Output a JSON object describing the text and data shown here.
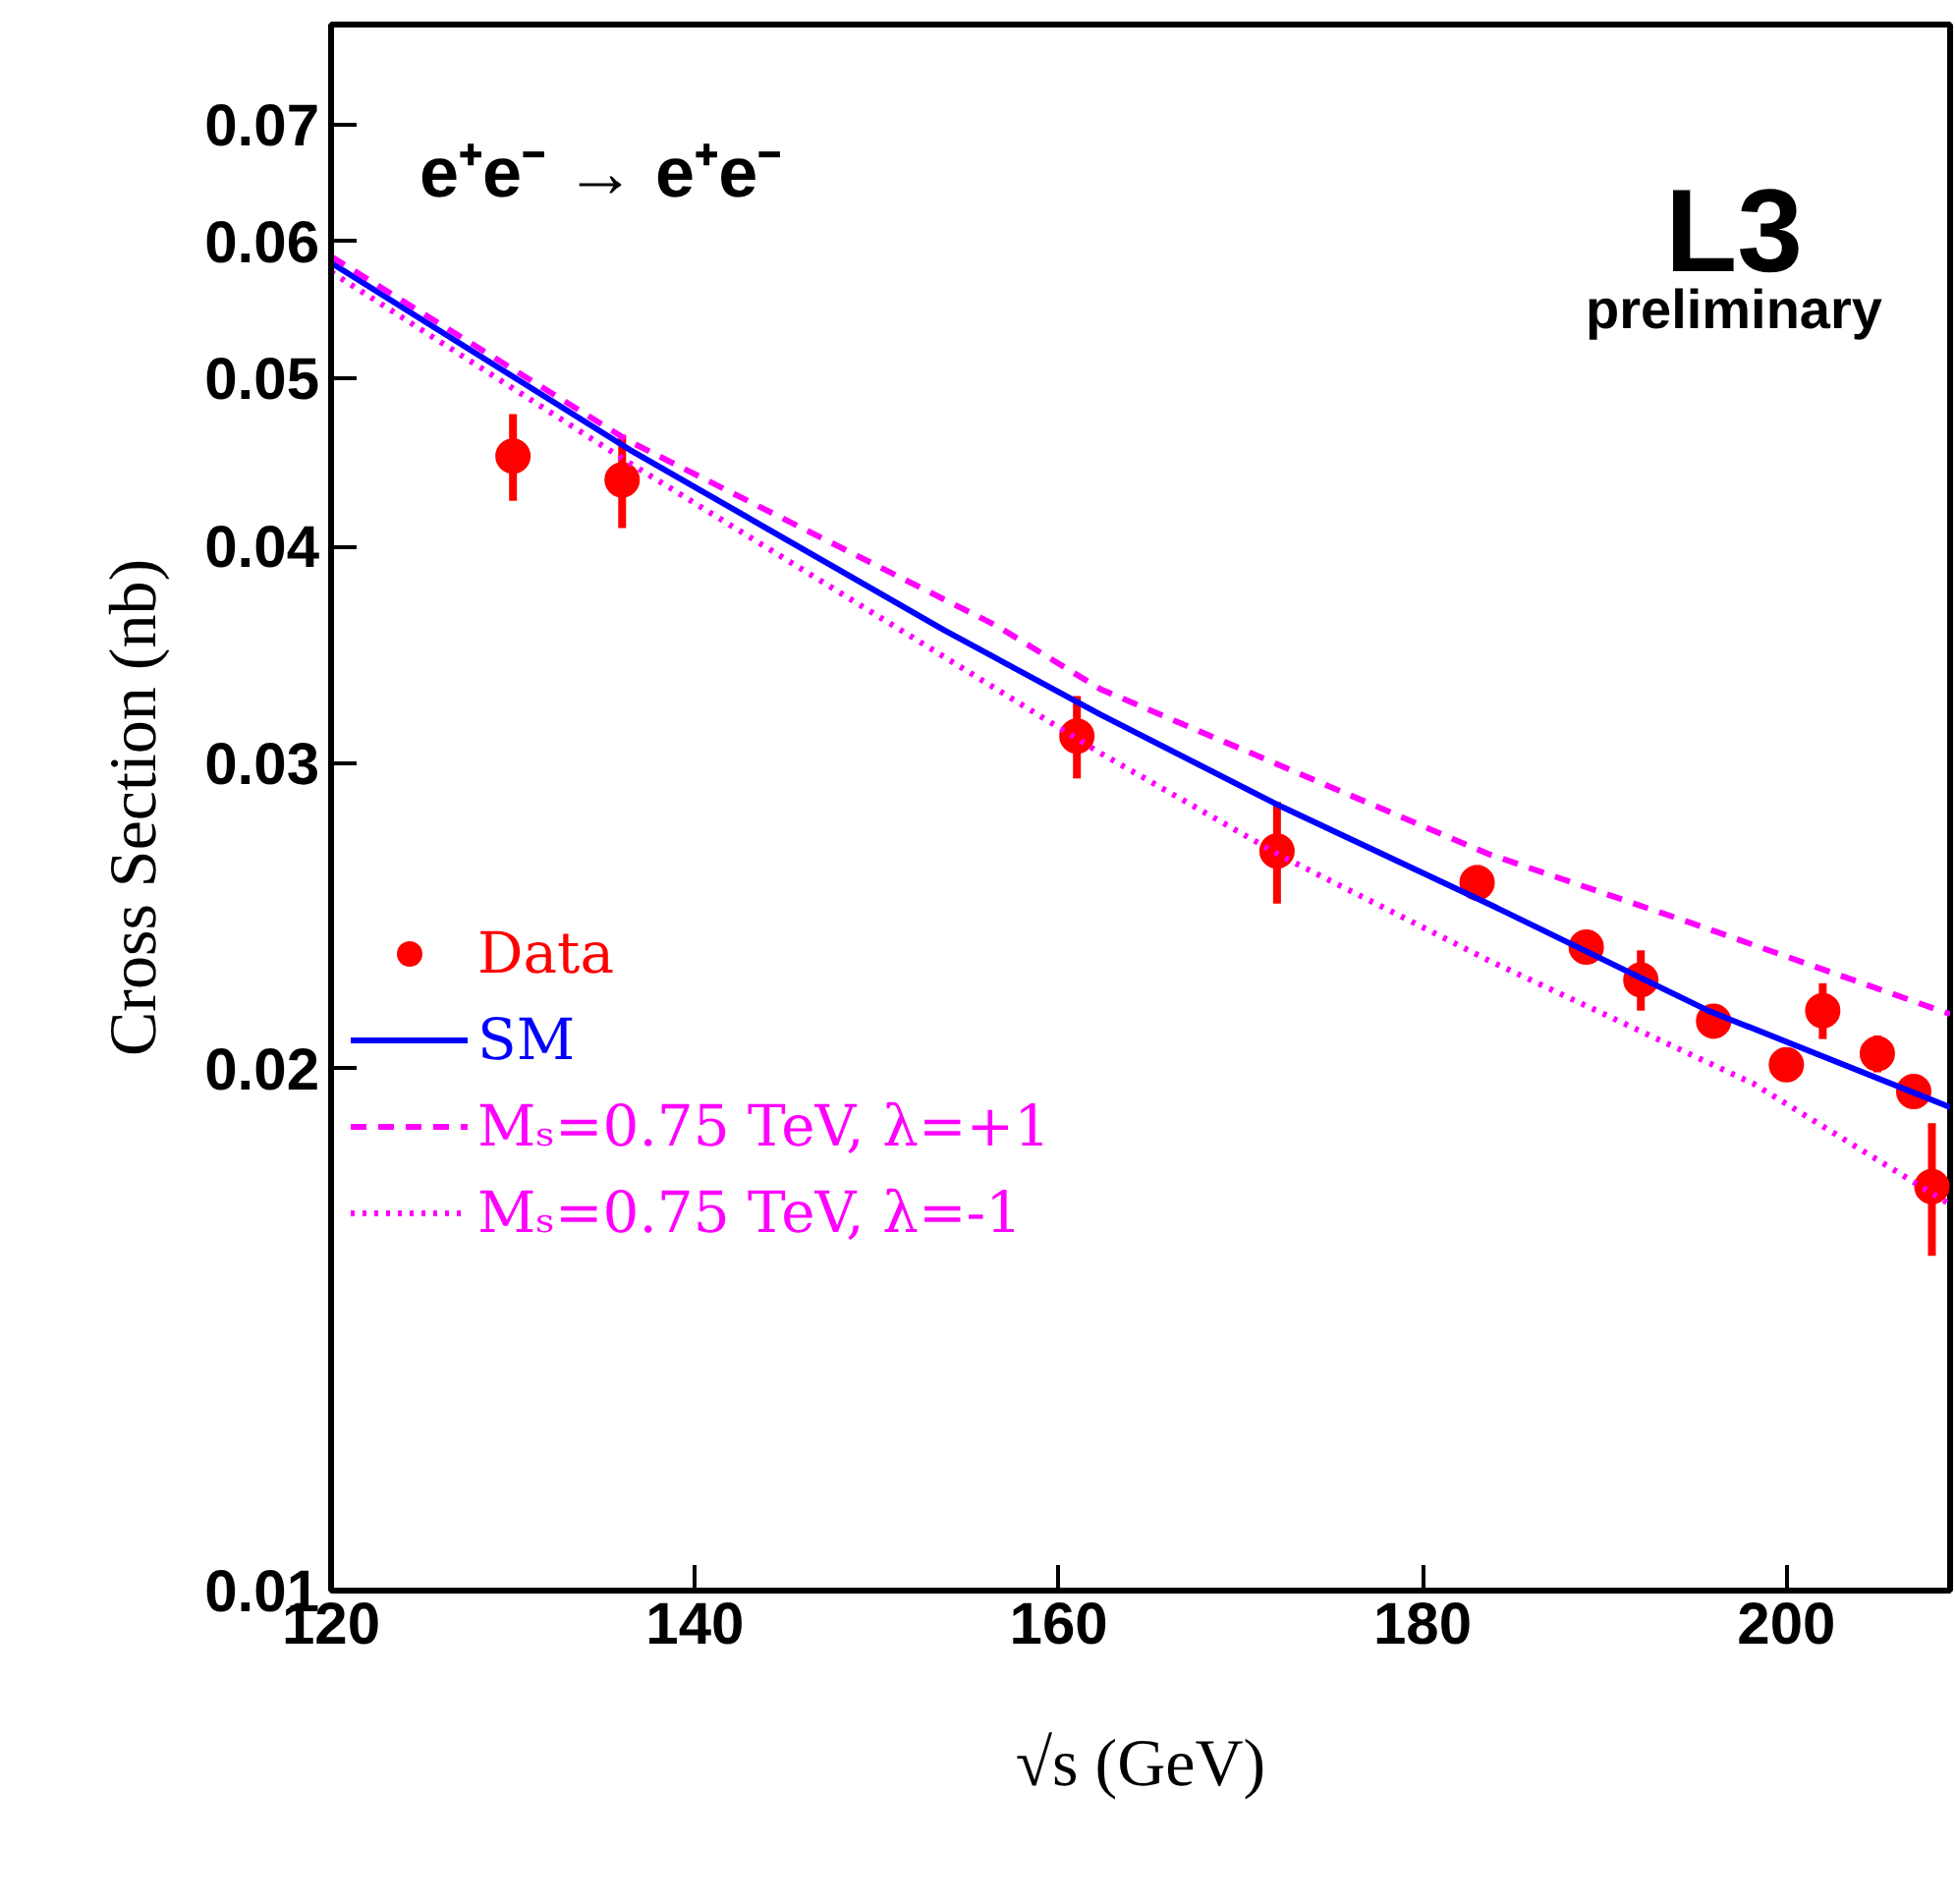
{
  "chart_data": {
    "type": "scatter",
    "xlabel": "√s (GeV)",
    "ylabel": "Cross Section (nb)",
    "annotations": [
      "e⁺e⁻ → e⁺e⁻",
      "L3",
      "preliminary"
    ],
    "log": "y",
    "grid": false,
    "legend": "bottom left",
    "xlim": [
      120,
      209
    ],
    "xticks": [
      120,
      140,
      160,
      180,
      200
    ],
    "ylim": [
      0.01,
      0.08
    ],
    "yticks": [
      0.01,
      0.02,
      0.03,
      0.04,
      0.05,
      0.06,
      0.07
    ],
    "series": [
      {
        "name": "Data",
        "marker": "circle",
        "color": "#ff0000",
        "x": [
          130,
          136,
          161,
          172,
          183,
          189,
          192,
          196,
          200,
          202,
          205,
          207,
          208
        ],
        "values": [
          0.0451,
          0.0437,
          0.0311,
          0.0267,
          0.0256,
          0.0235,
          0.0225,
          0.0213,
          0.0201,
          0.0216,
          0.0204,
          0.0194,
          0.0171
        ],
        "errors": [
          0.0026,
          0.0027,
          0.0017,
          0.0018,
          0.0006,
          0.0005,
          0.0009,
          0.0004,
          0.0004,
          0.0008,
          0.0005,
          0.0003,
          0.0015
        ]
      },
      {
        "name": "SM",
        "type": "line",
        "line_style": "solid",
        "color": "#0000ff",
        "x": [
          120,
          136.4,
          153.7,
          162.3,
          172.3,
          183.6,
          195.7,
          209
        ],
        "values": [
          0.0583,
          0.0455,
          0.0358,
          0.032,
          0.0283,
          0.0249,
          0.0216,
          0.019
        ]
      },
      {
        "name": "Mₛ=0.75 TeV, λ=+1",
        "type": "line",
        "line_style": "dashed",
        "color": "#ff00ff",
        "x": [
          120,
          136.4,
          156.6,
          162.3,
          183.6,
          194.6,
          209
        ],
        "values": [
          0.0588,
          0.046,
          0.036,
          0.0331,
          0.0266,
          0.0243,
          0.0215
        ]
      },
      {
        "name": "Mₛ=0.75 TeV, λ=-1",
        "type": "line",
        "line_style": "dotted",
        "color": "#ff00ff",
        "x": [
          120,
          136.4,
          162.3,
          172.3,
          183.6,
          198.2,
          209
        ],
        "values": [
          0.0576,
          0.0447,
          0.0304,
          0.0265,
          0.0231,
          0.0196,
          0.0167
        ]
      }
    ]
  }
}
